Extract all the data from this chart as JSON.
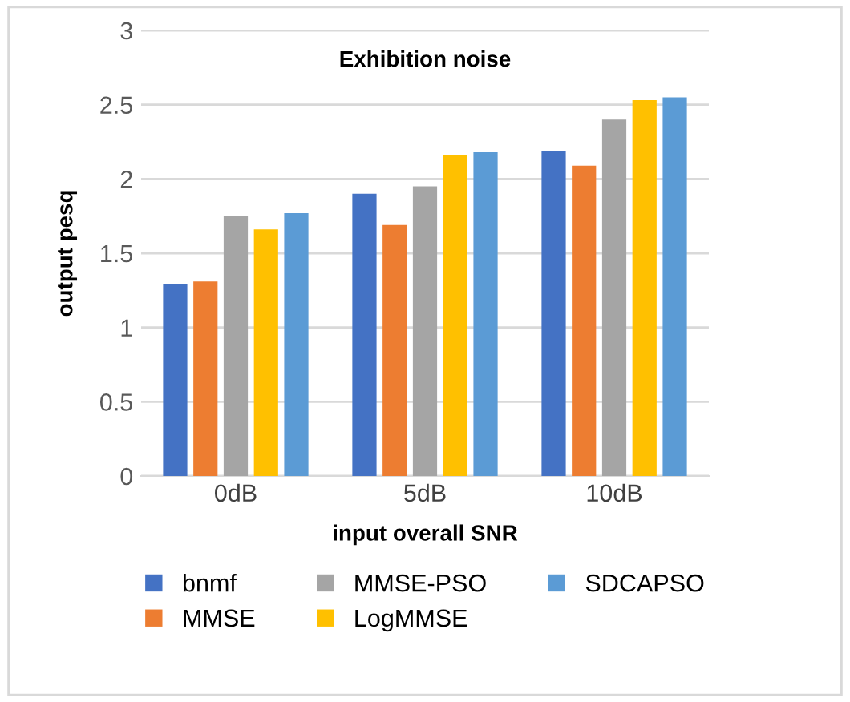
{
  "chart_data": {
    "type": "bar",
    "title": "Exhibition noise",
    "xlabel": "input overall SNR",
    "ylabel": "output pesq",
    "categories": [
      "0dB",
      "5dB",
      "10dB"
    ],
    "series": [
      {
        "name": "bnmf",
        "color": "#4472c4",
        "values": [
          1.29,
          1.9,
          2.19
        ]
      },
      {
        "name": "MMSE",
        "color": "#ed7d31",
        "values": [
          1.31,
          1.69,
          2.09
        ]
      },
      {
        "name": "MMSE-PSO",
        "color": "#a5a5a5",
        "values": [
          1.75,
          1.95,
          2.4
        ]
      },
      {
        "name": "LogMMSE",
        "color": "#ffc000",
        "values": [
          1.66,
          2.16,
          2.53
        ]
      },
      {
        "name": "SDCAPSO",
        "color": "#5b9bd5",
        "values": [
          1.77,
          2.18,
          2.55
        ]
      }
    ],
    "ylim": [
      0,
      3
    ],
    "yticks": [
      0,
      0.5,
      1,
      1.5,
      2,
      2.5,
      3
    ],
    "grid": "y",
    "legend": "bottom"
  }
}
